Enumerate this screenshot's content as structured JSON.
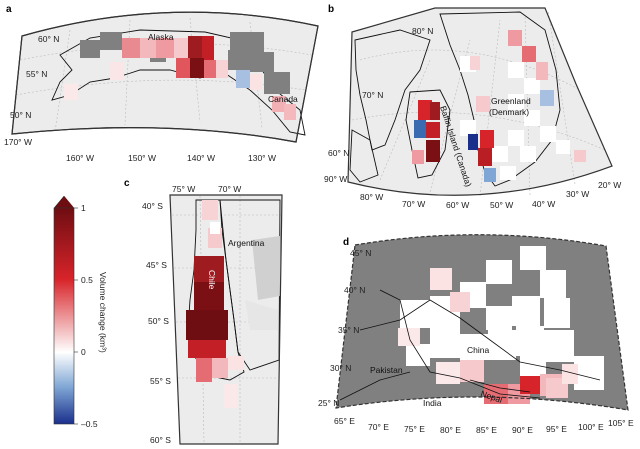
{
  "panels": {
    "a": {
      "label": "a",
      "places": [
        "Alaska",
        "Canada"
      ],
      "lat_ticks": [
        "60° N",
        "55° N",
        "50° N"
      ],
      "lon_ticks": [
        "170° W",
        "160° W",
        "150° W",
        "140° W",
        "130° W"
      ]
    },
    "b": {
      "label": "b",
      "places": [
        "Greenland",
        "(Denmark)",
        "Baffin Island (Canada)"
      ],
      "lat_ticks": [
        "80° N",
        "70° N",
        "60° N"
      ],
      "lon_ticks": [
        "90° W",
        "80° W",
        "70° W",
        "60° W",
        "50° W",
        "40° W",
        "30° W",
        "20° W"
      ]
    },
    "c": {
      "label": "c",
      "places": [
        "Argentina",
        "Chile"
      ],
      "lat_ticks": [
        "40° S",
        "45° S",
        "50° S",
        "55° S",
        "60° S"
      ],
      "lon_ticks": [
        "75° W",
        "70° W"
      ]
    },
    "d": {
      "label": "d",
      "places": [
        "China",
        "Pakistan",
        "India",
        "Nepal"
      ],
      "lat_ticks": [
        "45° N",
        "40° N",
        "35° N",
        "30° N",
        "25° N"
      ],
      "lon_ticks": [
        "65° E",
        "70° E",
        "75° E",
        "80° E",
        "85° E",
        "90° E",
        "95° E",
        "100° E",
        "105° E"
      ]
    }
  },
  "colorbar": {
    "title": "Volume change (km³)",
    "ticks": [
      "1",
      "0.5",
      "0",
      "–0.5"
    ],
    "min": -0.5,
    "max": 1,
    "colors": {
      "max": "#6e0d12",
      "high": "#d7242a",
      "mid": "#ffffff",
      "low": "#7fa6d4",
      "min": "#1a2f8c"
    }
  },
  "colors": {
    "land_grey": "#808080",
    "ocean": "#ececec",
    "coast": "#111111"
  }
}
